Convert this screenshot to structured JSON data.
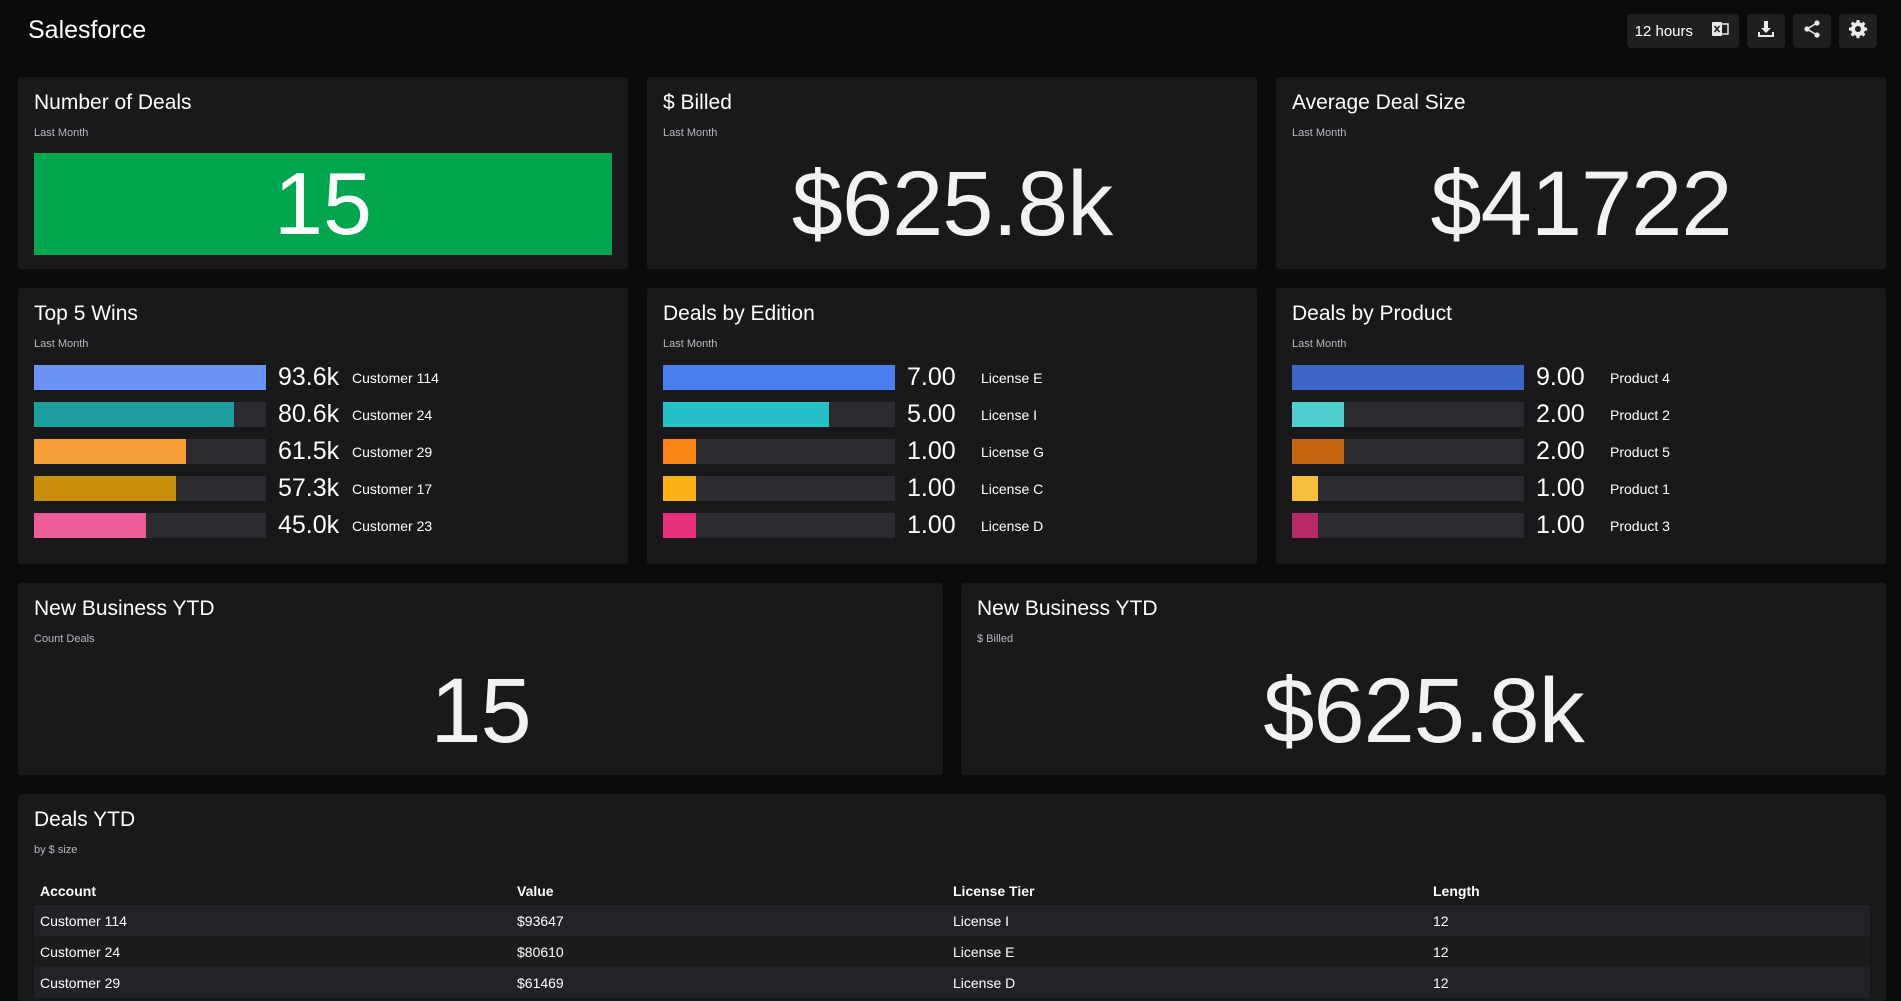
{
  "app": {
    "title": "Salesforce"
  },
  "toolbar": {
    "time_range": "12 hours"
  },
  "kpis": {
    "deals": {
      "title": "Number of Deals",
      "subtitle": "Last Month",
      "value": "15",
      "color": "#00a64d"
    },
    "billed": {
      "title": "$ Billed",
      "subtitle": "Last Month",
      "value": "$625.8k"
    },
    "avg": {
      "title": "Average Deal Size",
      "subtitle": "Last Month",
      "value": "$41722"
    }
  },
  "top_wins": {
    "title": "Top 5 Wins",
    "subtitle": "Last Month",
    "rows": [
      {
        "value": "93.6k",
        "label": "Customer 114",
        "fraction": 1.0,
        "color": "#6b92f6"
      },
      {
        "value": "80.6k",
        "label": "Customer 24",
        "fraction": 0.861,
        "color": "#1e9e9f"
      },
      {
        "value": "61.5k",
        "label": "Customer 29",
        "fraction": 0.657,
        "color": "#f59f36"
      },
      {
        "value": "57.3k",
        "label": "Customer 17",
        "fraction": 0.612,
        "color": "#c98d0c"
      },
      {
        "value": "45.0k",
        "label": "Customer 23",
        "fraction": 0.481,
        "color": "#ec5d97"
      }
    ]
  },
  "by_edition": {
    "title": "Deals by Edition",
    "subtitle": "Last Month",
    "rows": [
      {
        "value": "7.00",
        "label": "License E",
        "fraction": 1.0,
        "color": "#4a7ff0"
      },
      {
        "value": "5.00",
        "label": "License I",
        "fraction": 0.714,
        "color": "#24c1c9"
      },
      {
        "value": "1.00",
        "label": "License G",
        "fraction": 0.143,
        "color": "#f78513"
      },
      {
        "value": "1.00",
        "label": "License C",
        "fraction": 0.143,
        "color": "#fbb216"
      },
      {
        "value": "1.00",
        "label": "License D",
        "fraction": 0.143,
        "color": "#e8307f"
      }
    ]
  },
  "by_product": {
    "title": "Deals by Product",
    "subtitle": "Last Month",
    "rows": [
      {
        "value": "9.00",
        "label": "Product 4",
        "fraction": 1.0,
        "color": "#3d67c8"
      },
      {
        "value": "2.00",
        "label": "Product 2",
        "fraction": 0.222,
        "color": "#4fcfd0"
      },
      {
        "value": "2.00",
        "label": "Product 5",
        "fraction": 0.222,
        "color": "#c2630d"
      },
      {
        "value": "1.00",
        "label": "Product 1",
        "fraction": 0.111,
        "color": "#f7be3d"
      },
      {
        "value": "1.00",
        "label": "Product 3",
        "fraction": 0.111,
        "color": "#b8296a"
      }
    ]
  },
  "ytd_count": {
    "title": "New Business YTD",
    "subtitle": "Count Deals",
    "value": "15"
  },
  "ytd_billed": {
    "title": "New Business YTD",
    "subtitle": "$ Billed",
    "value": "$625.8k"
  },
  "deals_table": {
    "title": "Deals YTD",
    "subtitle": "by $ size",
    "columns": [
      "Account",
      "Value",
      "License Tier",
      "Length"
    ],
    "rows": [
      [
        "Customer 114",
        "$93647",
        "License I",
        "12"
      ],
      [
        "Customer 24",
        "$80610",
        "License E",
        "12"
      ],
      [
        "Customer 29",
        "$61469",
        "License D",
        "12"
      ]
    ]
  }
}
